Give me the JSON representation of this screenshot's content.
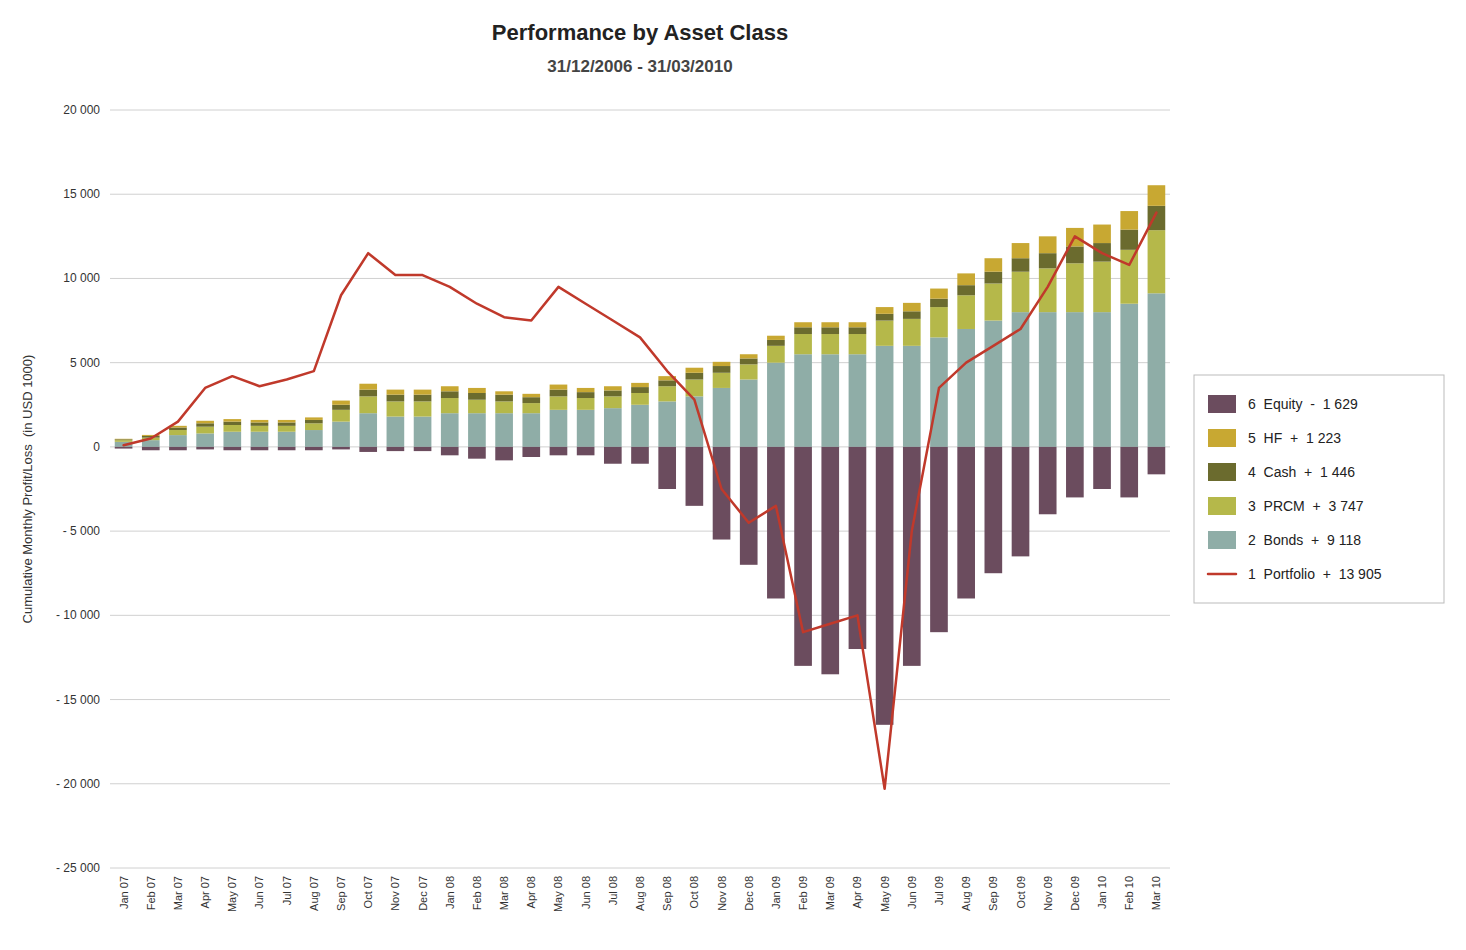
{
  "chart_data": {
    "type": "bar",
    "title": "Performance by Asset Class",
    "subtitle": "31/12/2006 - 31/03/2010",
    "y_label": "Cumulative Monthly Profit/Loss  (in USD 1000)",
    "stacked": true,
    "grid": true,
    "legend": "right",
    "ylim": [
      -25000,
      20000
    ],
    "yticks": [
      {
        "value": -25000,
        "label": "- 25 000"
      },
      {
        "value": -20000,
        "label": "- 20 000"
      },
      {
        "value": -15000,
        "label": "- 15 000"
      },
      {
        "value": -10000,
        "label": "- 10 000"
      },
      {
        "value": -5000,
        "label": "- 5 000"
      },
      0,
      {
        "value": 5000,
        "label": "5 000"
      },
      {
        "value": 10000,
        "label": "10 000"
      },
      {
        "value": 15000,
        "label": "15 000"
      },
      {
        "value": 20000,
        "label": "20 000"
      }
    ],
    "categories": [
      "Jan 07",
      "Feb 07",
      "Mar 07",
      "Apr 07",
      "May 07",
      "Jun 07",
      "Jul 07",
      "Aug 07",
      "Sep 07",
      "Oct 07",
      "Nov 07",
      "Dec 07",
      "Jan 08",
      "Feb 08",
      "Mar 08",
      "Apr 08",
      "May 08",
      "Jun 08",
      "Jul 08",
      "Aug 08",
      "Sep 08",
      "Oct 08",
      "Nov 08",
      "Dec 08",
      "Jan 09",
      "Feb 09",
      "Mar 09",
      "Apr 09",
      "May 09",
      "Jun 09",
      "Jul 09",
      "Aug 09",
      "Sep 09",
      "Oct 09",
      "Nov 09",
      "Dec 09",
      "Jan 10",
      "Feb 10",
      "Mar 10"
    ],
    "series": [
      {
        "name": "2  Bonds  +  9 118",
        "type": "bar",
        "color": "#8fada7",
        "values": [
          300,
          400,
          700,
          800,
          900,
          900,
          900,
          1000,
          1500,
          2000,
          1800,
          1800,
          2000,
          2000,
          2000,
          2000,
          2200,
          2200,
          2300,
          2500,
          2700,
          3000,
          3500,
          4000,
          5000,
          5500,
          5500,
          5500,
          6000,
          6000,
          6500,
          7000,
          7500,
          8000,
          8000,
          8000,
          8000,
          8500,
          9118
        ]
      },
      {
        "name": "3  PRCM  +  3 747",
        "type": "bar",
        "color": "#b5b84a",
        "values": [
          100,
          150,
          300,
          400,
          400,
          350,
          350,
          400,
          700,
          1000,
          900,
          900,
          900,
          800,
          700,
          600,
          800,
          700,
          700,
          700,
          900,
          1000,
          900,
          900,
          1000,
          1200,
          1200,
          1200,
          1500,
          1600,
          1800,
          2000,
          2200,
          2400,
          2600,
          2900,
          3000,
          3200,
          3747
        ]
      },
      {
        "name": "4  Cash  +  1 446",
        "type": "bar",
        "color": "#6b6b2e",
        "values": [
          50,
          100,
          150,
          200,
          200,
          200,
          200,
          200,
          300,
          400,
          400,
          400,
          400,
          400,
          400,
          350,
          400,
          350,
          350,
          350,
          350,
          400,
          400,
          350,
          350,
          400,
          400,
          400,
          400,
          450,
          500,
          600,
          700,
          800,
          900,
          1000,
          1100,
          1200,
          1446
        ]
      },
      {
        "name": "5  HF  +  1 223",
        "type": "bar",
        "color": "#c8a832",
        "values": [
          30,
          60,
          100,
          150,
          150,
          150,
          150,
          150,
          250,
          350,
          300,
          300,
          300,
          300,
          200,
          200,
          300,
          250,
          250,
          250,
          250,
          300,
          250,
          250,
          250,
          300,
          300,
          300,
          400,
          500,
          600,
          700,
          800,
          900,
          1000,
          1100,
          1100,
          1100,
          1223
        ]
      },
      {
        "name": "6  Equity  -  1 629",
        "type": "bar",
        "color": "#6b4c5e",
        "values": [
          -100,
          -200,
          -200,
          -150,
          -200,
          -200,
          -200,
          -200,
          -150,
          -300,
          -250,
          -250,
          -500,
          -700,
          -800,
          -600,
          -500,
          -500,
          -1000,
          -1000,
          -2500,
          -3500,
          -5500,
          -7000,
          -9000,
          -13000,
          -13500,
          -12000,
          -16500,
          -13000,
          -11000,
          -9000,
          -7500,
          -6500,
          -4000,
          -3000,
          -2500,
          -3000,
          -1629
        ]
      },
      {
        "name": "1  Portfolio  +  13 905",
        "type": "line",
        "color": "#c0392b",
        "values": [
          100,
          500,
          1500,
          3500,
          4200,
          3600,
          4000,
          4500,
          9000,
          11500,
          10200,
          10200,
          9500,
          8500,
          7700,
          7500,
          9500,
          8500,
          7500,
          6500,
          4500,
          2800,
          -2500,
          -4500,
          -3500,
          -11000,
          -10500,
          -10000,
          -20300,
          -5000,
          3500,
          5000,
          6000,
          7000,
          9500,
          12500,
          11500,
          10800,
          13905
        ]
      }
    ]
  }
}
